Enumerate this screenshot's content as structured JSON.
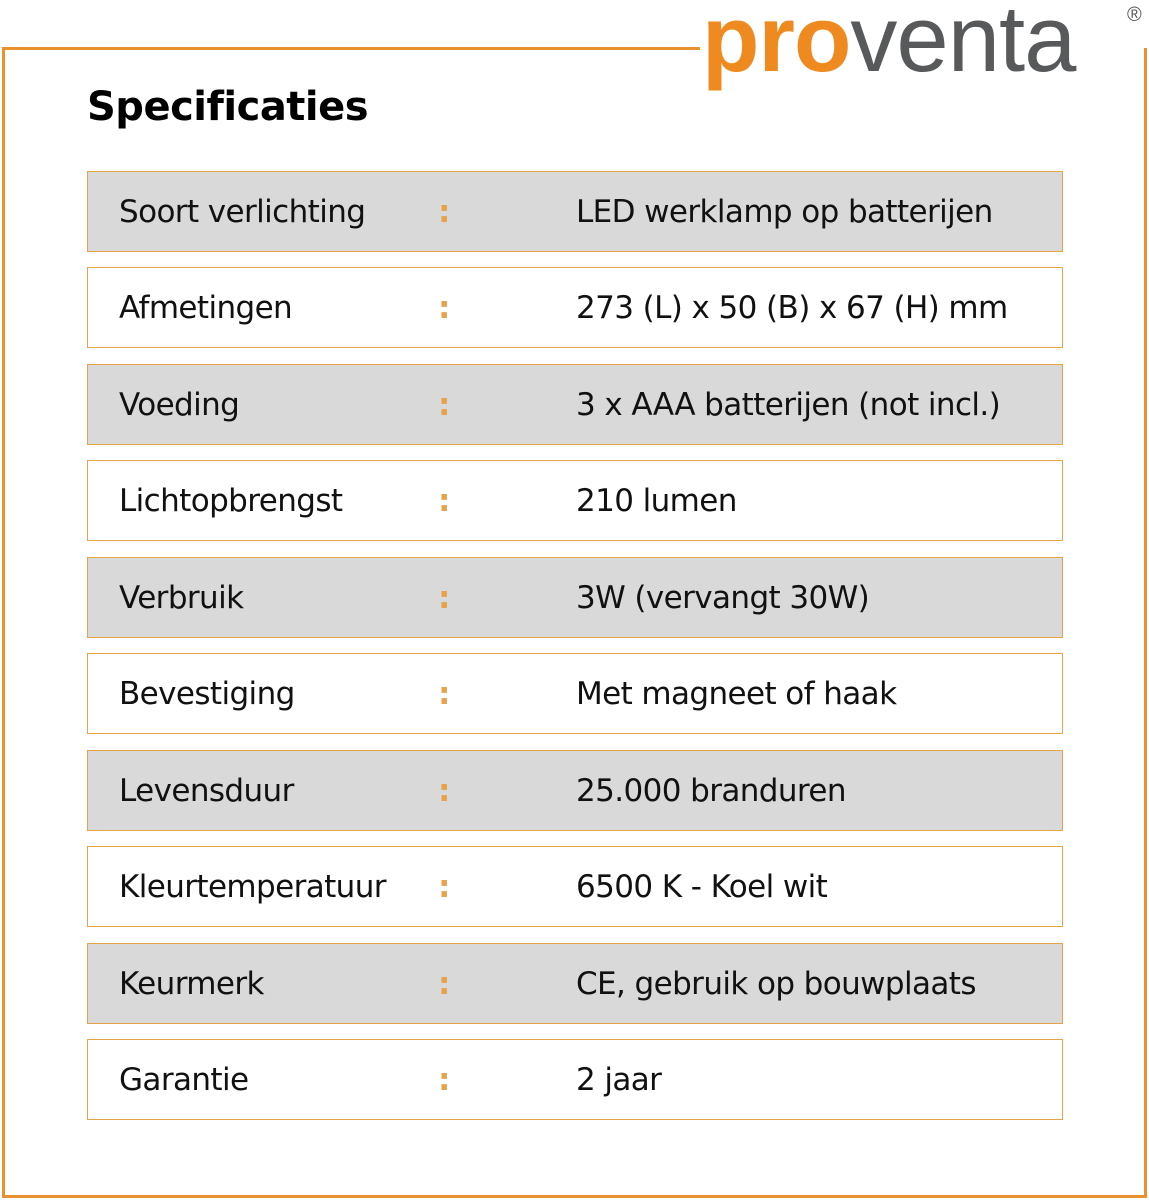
{
  "brand": {
    "logo_text_accent": "pro",
    "logo_text_rest": "venta",
    "registered_mark": "®",
    "accent_color": "#ee8a1f",
    "text_color": "#58595b"
  },
  "title": "Specificaties",
  "separator": ":",
  "specs": [
    {
      "label": "Soort verlichting",
      "value": "LED werklamp op batterijen"
    },
    {
      "label": "Afmetingen",
      "value": "273 (L) x 50 (B) x 67 (H) mm"
    },
    {
      "label": "Voeding",
      "value": "3 x AAA batterijen (not incl.)"
    },
    {
      "label": "Lichtopbrengst",
      "value": "210 lumen"
    },
    {
      "label": "Verbruik",
      "value": "3W (vervangt 30W)"
    },
    {
      "label": "Bevestiging",
      "value": "Met magneet of haak"
    },
    {
      "label": "Levensduur",
      "value": "25.000 branduren"
    },
    {
      "label": "Kleurtemperatuur",
      "value": "6500 K - Koel wit"
    },
    {
      "label": "Keurmerk",
      "value": "CE, gebruik op bouwplaats"
    },
    {
      "label": "Garantie",
      "value": "2 jaar"
    }
  ]
}
